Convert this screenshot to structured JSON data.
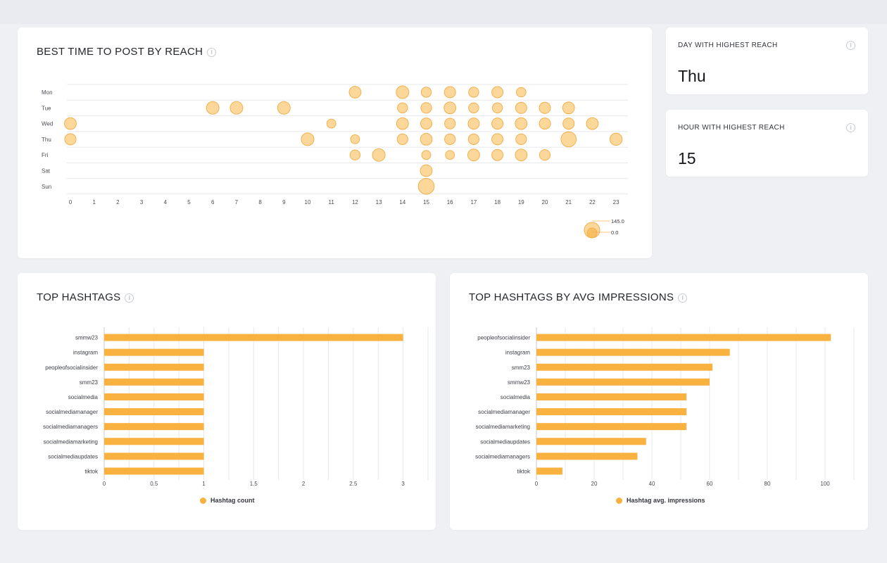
{
  "colors": {
    "accent": "#f9b13f",
    "bubble_fill": "#fbd79a",
    "bubble_stroke": "#f2b04f",
    "grid": "#e7e8ec"
  },
  "best_time": {
    "title": "BEST TIME TO POST BY REACH",
    "info_icon": "info-icon",
    "size_legend": {
      "max_label": "145.0",
      "min_label": "0.0"
    }
  },
  "day_card": {
    "label": "DAY WITH HIGHEST REACH",
    "value": "Thu",
    "info_icon": "info-icon"
  },
  "hour_card": {
    "label": "HOUR WITH HIGHEST REACH",
    "value": "15",
    "info_icon": "info-icon"
  },
  "hashtags_card": {
    "title": "TOP HASHTAGS",
    "legend": "Hashtag count",
    "info_icon": "info-icon"
  },
  "impressions_card": {
    "title": "TOP HASHTAGS BY AVG IMPRESSIONS",
    "legend": "Hashtag avg. impressions",
    "info_icon": "info-icon"
  },
  "chart_data": [
    {
      "type": "scatter",
      "title": "BEST TIME TO POST BY REACH",
      "days": [
        "Mon",
        "Tue",
        "Wed",
        "Thu",
        "Fri",
        "Sat",
        "Sun"
      ],
      "hours": [
        "0",
        "1",
        "2",
        "3",
        "4",
        "5",
        "6",
        "7",
        "8",
        "9",
        "10",
        "11",
        "12",
        "13",
        "14",
        "15",
        "16",
        "17",
        "18",
        "19",
        "20",
        "21",
        "22",
        "23"
      ],
      "size_range": [
        0,
        145
      ],
      "points": [
        {
          "day": "Mon",
          "hour": 12,
          "reach": 60
        },
        {
          "day": "Mon",
          "hour": 14,
          "reach": 70
        },
        {
          "day": "Mon",
          "hour": 15,
          "reach": 45
        },
        {
          "day": "Mon",
          "hour": 16,
          "reach": 55
        },
        {
          "day": "Mon",
          "hour": 17,
          "reach": 45
        },
        {
          "day": "Mon",
          "hour": 18,
          "reach": 55
        },
        {
          "day": "Mon",
          "hour": 19,
          "reach": 40
        },
        {
          "day": "Tue",
          "hour": 6,
          "reach": 70
        },
        {
          "day": "Tue",
          "hour": 7,
          "reach": 70
        },
        {
          "day": "Tue",
          "hour": 9,
          "reach": 70
        },
        {
          "day": "Tue",
          "hour": 14,
          "reach": 45
        },
        {
          "day": "Tue",
          "hour": 15,
          "reach": 50
        },
        {
          "day": "Tue",
          "hour": 16,
          "reach": 60
        },
        {
          "day": "Tue",
          "hour": 17,
          "reach": 45
        },
        {
          "day": "Tue",
          "hour": 18,
          "reach": 45
        },
        {
          "day": "Tue",
          "hour": 19,
          "reach": 55
        },
        {
          "day": "Tue",
          "hour": 20,
          "reach": 55
        },
        {
          "day": "Tue",
          "hour": 21,
          "reach": 60
        },
        {
          "day": "Wed",
          "hour": 0,
          "reach": 60
        },
        {
          "day": "Wed",
          "hour": 11,
          "reach": 35
        },
        {
          "day": "Wed",
          "hour": 14,
          "reach": 60
        },
        {
          "day": "Wed",
          "hour": 15,
          "reach": 55
        },
        {
          "day": "Wed",
          "hour": 16,
          "reach": 50
        },
        {
          "day": "Wed",
          "hour": 17,
          "reach": 55
        },
        {
          "day": "Wed",
          "hour": 18,
          "reach": 55
        },
        {
          "day": "Wed",
          "hour": 19,
          "reach": 60
        },
        {
          "day": "Wed",
          "hour": 20,
          "reach": 55
        },
        {
          "day": "Wed",
          "hour": 21,
          "reach": 55
        },
        {
          "day": "Wed",
          "hour": 22,
          "reach": 60
        },
        {
          "day": "Thu",
          "hour": 0,
          "reach": 55
        },
        {
          "day": "Thu",
          "hour": 10,
          "reach": 70
        },
        {
          "day": "Thu",
          "hour": 12,
          "reach": 35
        },
        {
          "day": "Thu",
          "hour": 14,
          "reach": 50
        },
        {
          "day": "Thu",
          "hour": 15,
          "reach": 60
        },
        {
          "day": "Thu",
          "hour": 16,
          "reach": 50
        },
        {
          "day": "Thu",
          "hour": 17,
          "reach": 50
        },
        {
          "day": "Thu",
          "hour": 18,
          "reach": 55
        },
        {
          "day": "Thu",
          "hour": 19,
          "reach": 50
        },
        {
          "day": "Thu",
          "hour": 21,
          "reach": 100
        },
        {
          "day": "Thu",
          "hour": 23,
          "reach": 65
        },
        {
          "day": "Fri",
          "hour": 12,
          "reach": 45
        },
        {
          "day": "Fri",
          "hour": 13,
          "reach": 70
        },
        {
          "day": "Fri",
          "hour": 15,
          "reach": 35
        },
        {
          "day": "Fri",
          "hour": 16,
          "reach": 35
        },
        {
          "day": "Fri",
          "hour": 17,
          "reach": 60
        },
        {
          "day": "Fri",
          "hour": 18,
          "reach": 55
        },
        {
          "day": "Fri",
          "hour": 19,
          "reach": 60
        },
        {
          "day": "Fri",
          "hour": 20,
          "reach": 50
        },
        {
          "day": "Sat",
          "hour": 15,
          "reach": 60
        },
        {
          "day": "Sun",
          "hour": 15,
          "reach": 110
        }
      ]
    },
    {
      "type": "bar",
      "orientation": "horizontal",
      "title": "TOP HASHTAGS",
      "categories": [
        "smmw23",
        "instagram",
        "peopleofsocialinsider",
        "smm23",
        "socialmedia",
        "socialmediamanager",
        "socialmediamanagers",
        "socialmediamarketing",
        "socialmediaupdates",
        "tiktok"
      ],
      "series": [
        {
          "name": "Hashtag count",
          "values": [
            3,
            1,
            1,
            1,
            1,
            1,
            1,
            1,
            1,
            1
          ]
        }
      ],
      "xlim": [
        0,
        3.25
      ],
      "ticks": [
        "0",
        "0.5",
        "1",
        "1.5",
        "2",
        "2.5",
        "3"
      ],
      "grid": true,
      "legend": "bottom"
    },
    {
      "type": "bar",
      "orientation": "horizontal",
      "title": "TOP HASHTAGS BY AVG IMPRESSIONS",
      "categories": [
        "peopleofsocialinsider",
        "instagram",
        "smm23",
        "smmw23",
        "socialmedia",
        "socialmediamanager",
        "socialmediamarketing",
        "socialmediaupdates",
        "socialmediamanagers",
        "tiktok"
      ],
      "series": [
        {
          "name": "Hashtag avg. impressions",
          "values": [
            102,
            67,
            61,
            60,
            52,
            52,
            52,
            38,
            35,
            9
          ]
        }
      ],
      "xlim": [
        0,
        110
      ],
      "ticks": [
        "0",
        "20",
        "40",
        "60",
        "80",
        "100"
      ],
      "grid": true,
      "legend": "bottom"
    }
  ]
}
